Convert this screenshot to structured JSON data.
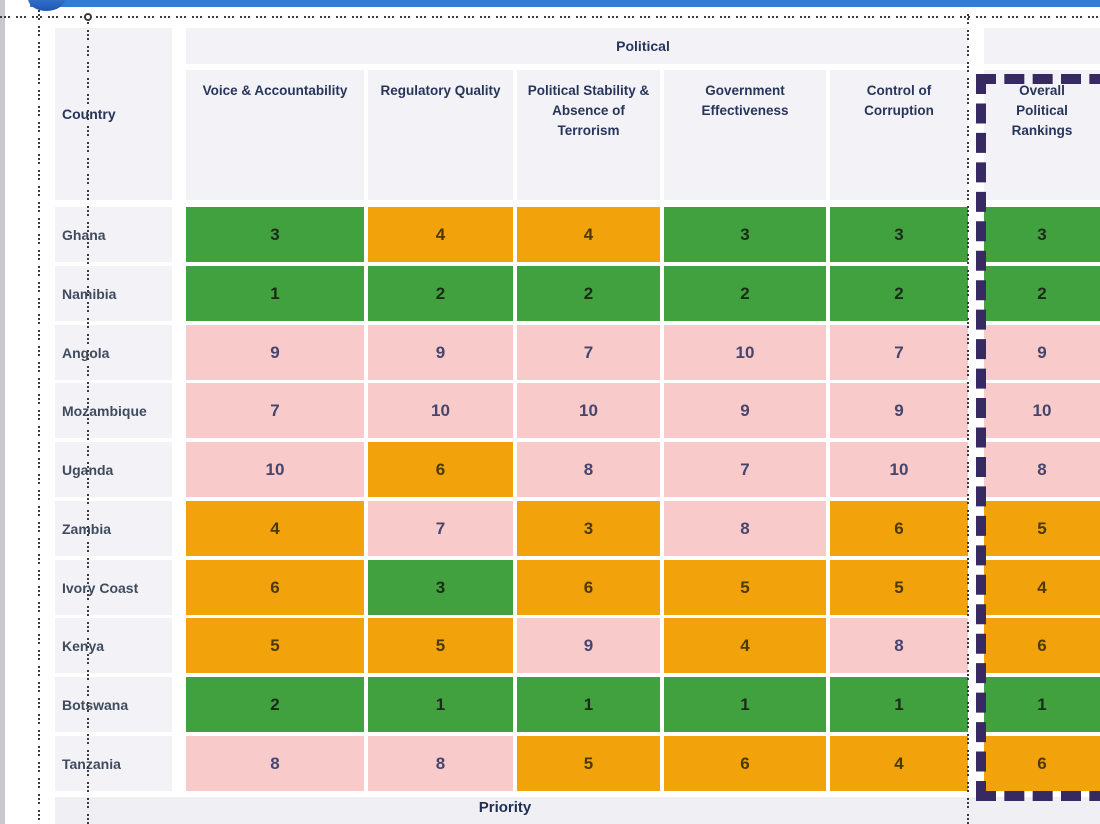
{
  "chrome": {
    "left_edge": "window-left-edge",
    "top_bar_color": "#2f7dd8",
    "ellipse_color": "#1d55b4",
    "guide_color": "#3d3d3d",
    "selection_border_color": "#372a63"
  },
  "header": {
    "country_label": "Country",
    "group_label": "Political",
    "col_labels": [
      "Voice & Accountability",
      "Regulatory Quality",
      "Political Stability  & Absence of Terrorism",
      "Government Effectiveness",
      "Control of Corruption",
      "Overall Political Rankings"
    ]
  },
  "footer": {
    "label": "Priority"
  },
  "chart_data": {
    "type": "table",
    "title": "Political",
    "columns": [
      "Country",
      "Voice & Accountability",
      "Regulatory Quality",
      "Political Stability  & Absence of Terrorism",
      "Government Effectiveness",
      "Control of Corruption",
      "Overall Political Rankings"
    ],
    "rows": [
      {
        "country": "Ghana",
        "values": [
          3,
          4,
          4,
          3,
          3,
          3
        ],
        "colors": [
          "green",
          "orange",
          "orange",
          "green",
          "green",
          "green"
        ]
      },
      {
        "country": "Namibia",
        "values": [
          1,
          2,
          2,
          2,
          2,
          2
        ],
        "colors": [
          "green",
          "green",
          "green",
          "green",
          "green",
          "green"
        ]
      },
      {
        "country": "Angola",
        "values": [
          9,
          9,
          7,
          10,
          7,
          9
        ],
        "colors": [
          "pink",
          "pink",
          "pink",
          "pink",
          "pink",
          "pink"
        ]
      },
      {
        "country": "Mozambique",
        "values": [
          7,
          10,
          10,
          9,
          9,
          10
        ],
        "colors": [
          "pink",
          "pink",
          "pink",
          "pink",
          "pink",
          "pink"
        ]
      },
      {
        "country": "Uganda",
        "values": [
          10,
          6,
          8,
          7,
          10,
          8
        ],
        "colors": [
          "pink",
          "orange",
          "pink",
          "pink",
          "pink",
          "pink"
        ]
      },
      {
        "country": "Zambia",
        "values": [
          4,
          7,
          3,
          8,
          6,
          5
        ],
        "colors": [
          "orange",
          "pink",
          "orange",
          "pink",
          "orange",
          "orange"
        ]
      },
      {
        "country": "Ivory Coast",
        "values": [
          6,
          3,
          6,
          5,
          5,
          4
        ],
        "colors": [
          "orange",
          "green",
          "orange",
          "orange",
          "orange",
          "orange"
        ]
      },
      {
        "country": "Kenya",
        "values": [
          5,
          5,
          9,
          4,
          8,
          6
        ],
        "colors": [
          "orange",
          "orange",
          "pink",
          "orange",
          "pink",
          "orange"
        ]
      },
      {
        "country": "Botswana",
        "values": [
          2,
          1,
          1,
          1,
          1,
          1
        ],
        "colors": [
          "green",
          "green",
          "green",
          "green",
          "green",
          "green"
        ]
      },
      {
        "country": "Tanzania",
        "values": [
          8,
          8,
          5,
          6,
          4,
          6
        ],
        "colors": [
          "pink",
          "pink",
          "orange",
          "orange",
          "orange",
          "orange"
        ]
      }
    ],
    "footer": "Priority",
    "legend_colors": {
      "green": "#41a13e",
      "orange": "#f2a30b",
      "pink": "#f8caca"
    },
    "header_bg": "#f3f2f7",
    "highlighted_column": "Overall Political Rankings"
  }
}
